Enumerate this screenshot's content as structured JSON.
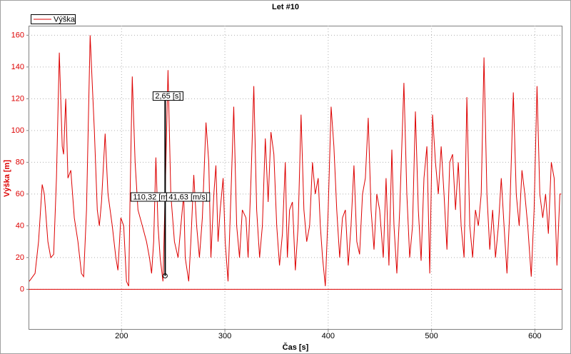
{
  "chart_data": {
    "type": "line",
    "title": "Let #10",
    "xlabel": "Čas [s]",
    "ylabel": "Výška [m]",
    "xlim": [
      110,
      626
    ],
    "ylim": [
      -25,
      166
    ],
    "xticks": [
      200,
      300,
      400,
      500,
      600
    ],
    "yticks": [
      0,
      20,
      40,
      60,
      80,
      100,
      120,
      140,
      160
    ],
    "grid": true,
    "legend": "top-left",
    "hline": 0,
    "cursor": {
      "x": 242.2,
      "y_from": 8.5,
      "y_to": 119
    },
    "annotations": [
      "2,65 [s]",
      "110,32 [m]",
      "41,63 [m/s]"
    ],
    "x": [
      110.7,
      116.3,
      119.7,
      123.2,
      125.3,
      128.7,
      131.5,
      134.3,
      137,
      139.8,
      142.6,
      143.9,
      146,
      148.1,
      150.9,
      154.3,
      157.8,
      161.2,
      163.3,
      166.1,
      169.6,
      171.6,
      173.7,
      176.5,
      178.5,
      180.6,
      184.1,
      186.9,
      191,
      194.5,
      196.5,
      199.3,
      202.1,
      204.8,
      206.9,
      208.3,
      210.4,
      213.1,
      215.9,
      220.1,
      224.2,
      227,
      229.1,
      231.1,
      233.2,
      235.3,
      237.4,
      240.1,
      242.2,
      245,
      247.7,
      251.2,
      254.7,
      258.1,
      260.2,
      261.6,
      265,
      267.1,
      269.9,
      272.7,
      275.4,
      278.2,
      281.7,
      284.4,
      286.5,
      289.3,
      291.3,
      293.4,
      295.5,
      298.3,
      300.3,
      303.1,
      305.9,
      308.6,
      311.4,
      314.2,
      316.9,
      320.4,
      322.5,
      325.3,
      328,
      330.8,
      333.6,
      336.3,
      339.1,
      341.9,
      344.6,
      347.4,
      350.2,
      352.9,
      355.7,
      358.5,
      360.5,
      362.6,
      365.4,
      368.2,
      370.9,
      373.7,
      376.5,
      379.2,
      382,
      384.8,
      387.5,
      390.3,
      392.4,
      394.5,
      397.2,
      400,
      402.8,
      405.5,
      408.3,
      411.1,
      413.8,
      416.6,
      419.4,
      422.1,
      424.9,
      427.7,
      430.4,
      433.2,
      436,
      438.7,
      441.5,
      444.3,
      447,
      449.8,
      453.3,
      456,
      458.8,
      461.6,
      463.7,
      466.4,
      469.2,
      473.3,
      476.1,
      478.9,
      481.6,
      484.4,
      487.2,
      489.9,
      492.7,
      495.5,
      498.3,
      501,
      503.8,
      506.6,
      509.3,
      512.1,
      514.9,
      517.6,
      520.4,
      523.2,
      525.9,
      528.7,
      531.5,
      534.2,
      537,
      539.8,
      542.5,
      545.3,
      548.1,
      550.8,
      553.6,
      556.4,
      559.1,
      561.9,
      564.7,
      567.5,
      570.2,
      573,
      575.8,
      579.2,
      582,
      584.8,
      587.5,
      590.3,
      593.1,
      596.5,
      599.3,
      602.1,
      604.8,
      607.6,
      610.4,
      613.1,
      615.9,
      618.7,
      621.4,
      624.2,
      625.5
    ],
    "series": [
      {
        "name": "Výška",
        "color": "#dd0000",
        "values": [
          5,
          10,
          30,
          66,
          60,
          30,
          20,
          22,
          70,
          149,
          90,
          85,
          120,
          70,
          75,
          45,
          30,
          10,
          8,
          50,
          160,
          130,
          100,
          50,
          40,
          55,
          98,
          60,
          40,
          20,
          12,
          45,
          40,
          5,
          2,
          60,
          134,
          80,
          50,
          40,
          30,
          20,
          10,
          30,
          83,
          40,
          20,
          5,
          60,
          138,
          60,
          30,
          20,
          45,
          60,
          20,
          5,
          30,
          72,
          40,
          20,
          45,
          105,
          80,
          20,
          60,
          78,
          30,
          50,
          70,
          30,
          5,
          60,
          115,
          40,
          20,
          50,
          45,
          20,
          70,
          128,
          50,
          20,
          40,
          95,
          55,
          99,
          85,
          40,
          15,
          35,
          80,
          20,
          50,
          55,
          12,
          40,
          110,
          50,
          30,
          40,
          80,
          60,
          70,
          40,
          20,
          2,
          50,
          115,
          90,
          50,
          20,
          45,
          50,
          15,
          40,
          78,
          30,
          22,
          60,
          70,
          108,
          50,
          25,
          60,
          50,
          20,
          70,
          15,
          88,
          40,
          10,
          50,
          130,
          60,
          20,
          40,
          112,
          50,
          18,
          70,
          90,
          10,
          110,
          80,
          60,
          90,
          60,
          25,
          80,
          85,
          50,
          80,
          40,
          20,
          121,
          40,
          20,
          50,
          40,
          60,
          146,
          60,
          25,
          50,
          20,
          40,
          70,
          40,
          10,
          50,
          124,
          60,
          40,
          75,
          60,
          40,
          8,
          50,
          128,
          60,
          45,
          60,
          35,
          80,
          70,
          15,
          60,
          60
        ]
      }
    ]
  }
}
